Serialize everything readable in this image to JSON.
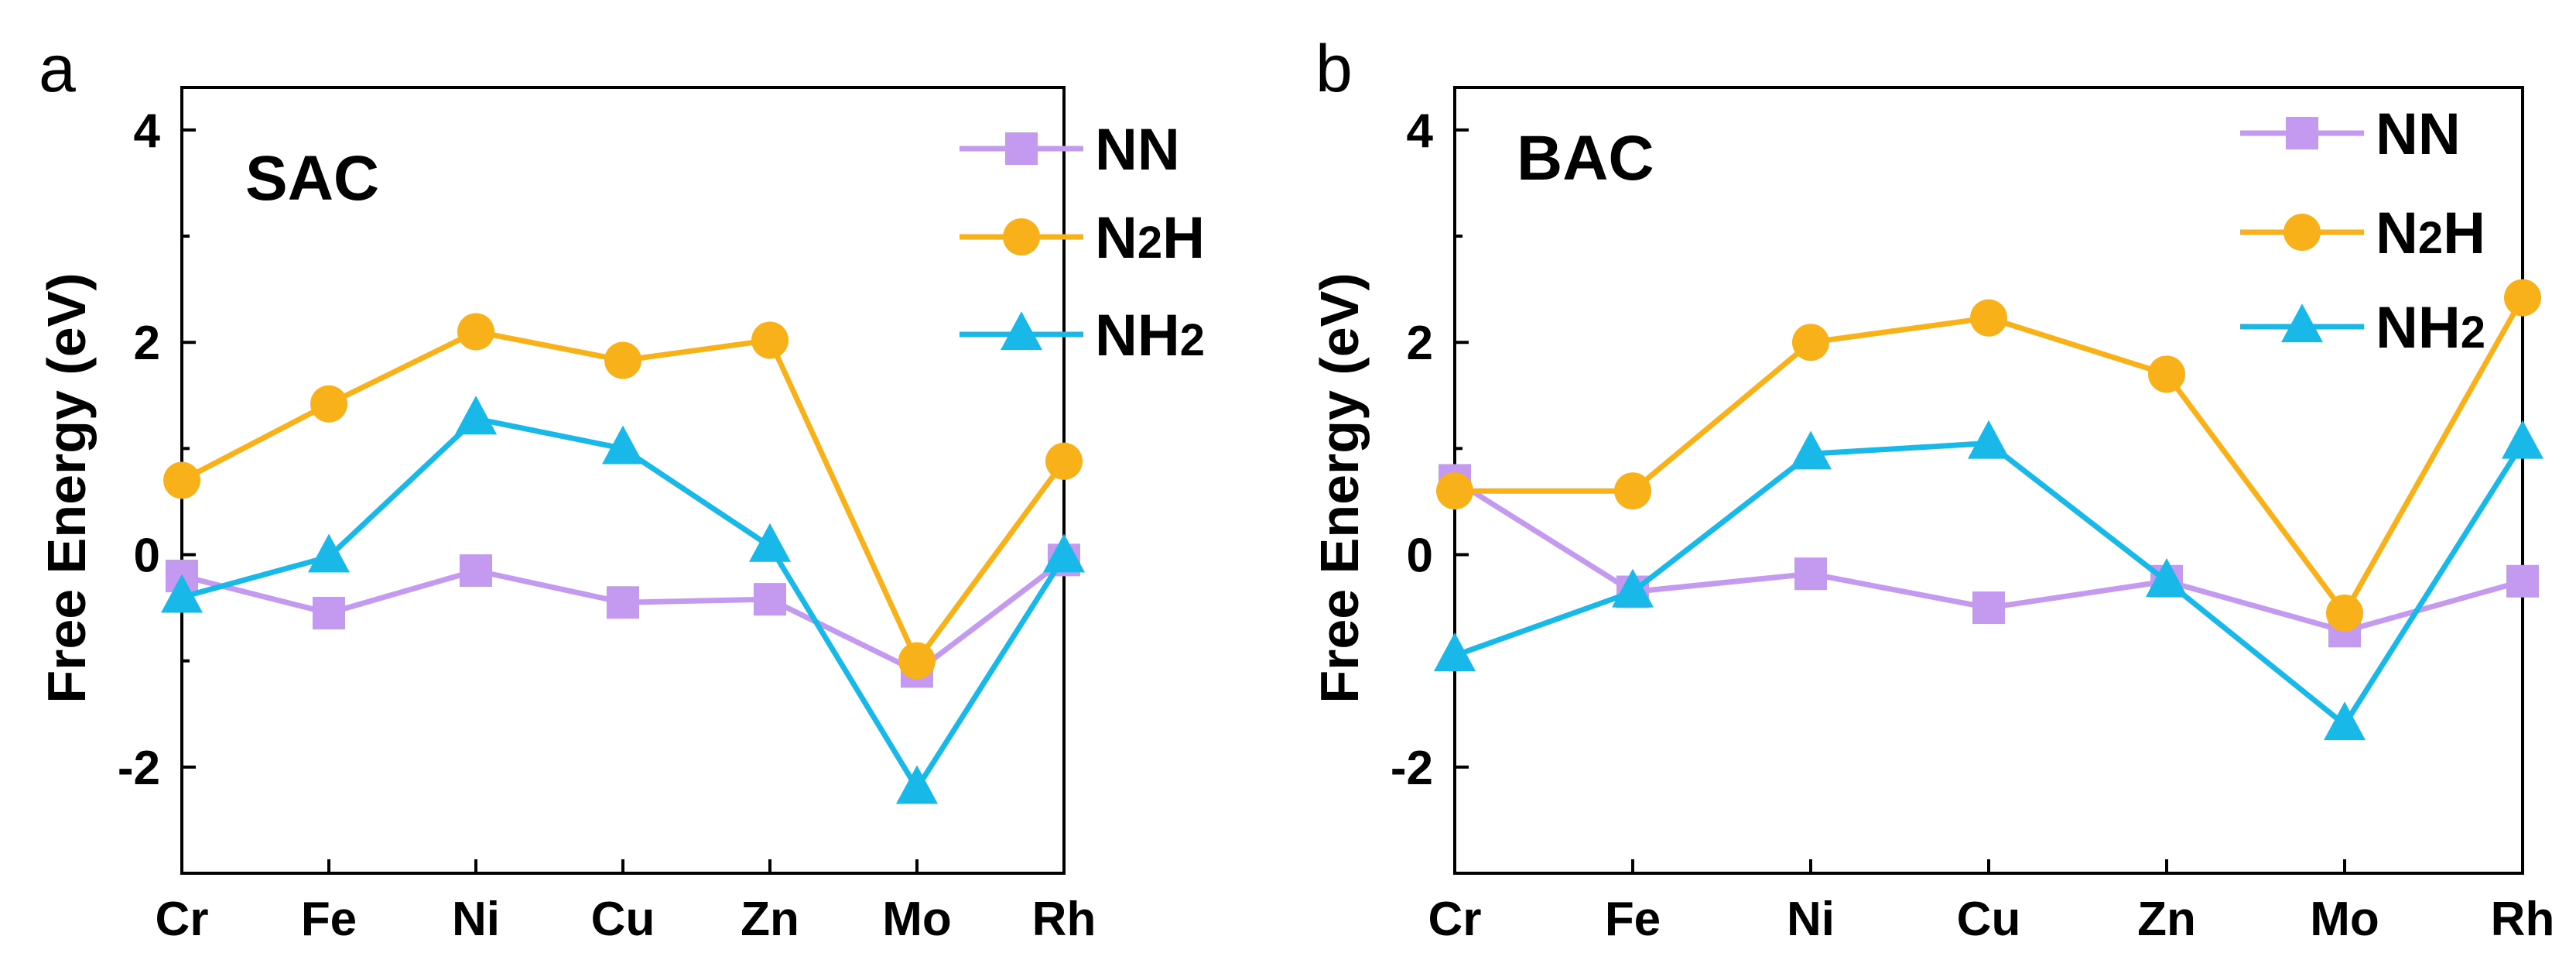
{
  "chart_data": [
    {
      "type": "line",
      "panel_label": "a",
      "tag": "SAC",
      "categories": [
        "Cr",
        "Fe",
        "Ni",
        "Cu",
        "Zn",
        "Mo",
        "Rh"
      ],
      "ylabel": "Free Energy (eV)",
      "xlabel": "",
      "ylim": [
        -3,
        4.4
      ],
      "yticks": [
        4,
        2,
        0,
        -2
      ],
      "grid": false,
      "legend_position": "top-right",
      "series": [
        {
          "name": "NN",
          "label_main": "NN",
          "label_sub": "",
          "marker": "square",
          "color": "#c39af0",
          "values": [
            -0.2,
            -0.55,
            -0.15,
            -0.45,
            -0.42,
            -1.1,
            -0.05
          ]
        },
        {
          "name": "N2H",
          "label_main": "N",
          "label_sub": "2",
          "label_tail": "H",
          "marker": "circle",
          "color": "#f8b119",
          "values": [
            0.7,
            1.42,
            2.1,
            1.83,
            2.02,
            -1.0,
            0.88
          ]
        },
        {
          "name": "NH2",
          "label_main": "NH",
          "label_sub": "2",
          "label_tail": "",
          "marker": "triangle",
          "color": "#18b8e8",
          "values": [
            -0.4,
            -0.02,
            1.28,
            1.0,
            0.08,
            -2.2,
            -0.02
          ]
        }
      ]
    },
    {
      "type": "line",
      "panel_label": "b",
      "tag": "BAC",
      "categories": [
        "Cr",
        "Fe",
        "Ni",
        "Cu",
        "Zn",
        "Mo",
        "Rh"
      ],
      "ylabel": "Free Energy (eV)",
      "xlabel": "",
      "ylim": [
        -3,
        4.4
      ],
      "yticks": [
        4,
        2,
        0,
        -2
      ],
      "grid": false,
      "legend_position": "top-right",
      "series": [
        {
          "name": "NN",
          "label_main": "NN",
          "label_sub": "",
          "marker": "square",
          "color": "#c39af0",
          "values": [
            0.7,
            -0.35,
            -0.18,
            -0.5,
            -0.25,
            -0.72,
            -0.25
          ]
        },
        {
          "name": "N2H",
          "label_main": "N",
          "label_sub": "2",
          "label_tail": "H",
          "marker": "circle",
          "color": "#f8b119",
          "values": [
            0.6,
            0.6,
            2.0,
            2.23,
            1.7,
            -0.55,
            2.42
          ]
        },
        {
          "name": "NH2",
          "label_main": "NH",
          "label_sub": "2",
          "label_tail": "",
          "marker": "triangle",
          "color": "#18b8e8",
          "values": [
            -0.95,
            -0.35,
            0.95,
            1.05,
            -0.25,
            -1.6,
            1.05
          ]
        }
      ]
    }
  ]
}
